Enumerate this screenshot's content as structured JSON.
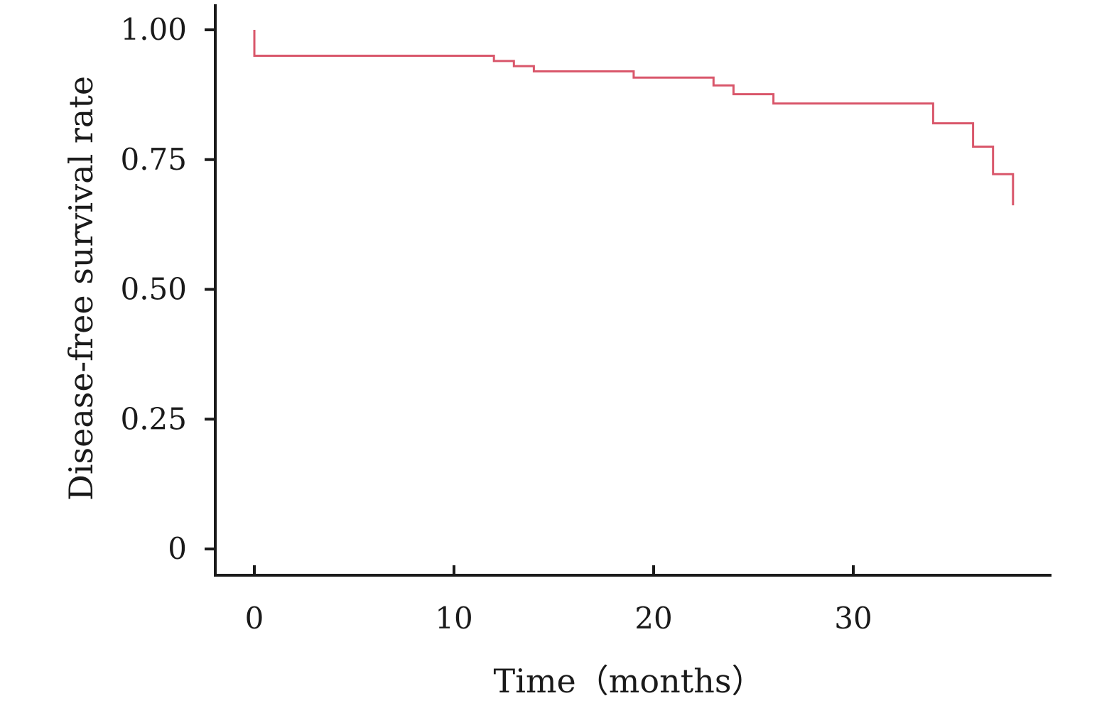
{
  "chart_data": {
    "type": "line",
    "step": true,
    "title": "",
    "xlabel": "Time（months）",
    "ylabel": "Disease-free survival rate",
    "xlim": [
      -2,
      40
    ],
    "ylim": [
      -0.1,
      1.05
    ],
    "x_ticks": [
      0,
      10,
      20,
      30
    ],
    "x_tick_labels": [
      "0",
      "10",
      "20",
      "30"
    ],
    "y_ticks": [
      0,
      0.25,
      0.5,
      0.75,
      1.0
    ],
    "y_tick_labels": [
      "0",
      "0.25",
      "0.50",
      "0.75",
      "1.00"
    ],
    "grid": false,
    "line_color": "#d9576b",
    "axis_color": "#1a1a1a",
    "series": [
      {
        "x": [
          0,
          0,
          12,
          13,
          14,
          19,
          23,
          24,
          26,
          34,
          36,
          37,
          38
        ],
        "y": [
          1.0,
          0.95,
          0.94,
          0.93,
          0.92,
          0.908,
          0.893,
          0.876,
          0.858,
          0.82,
          0.775,
          0.722,
          0.662
        ]
      }
    ]
  }
}
